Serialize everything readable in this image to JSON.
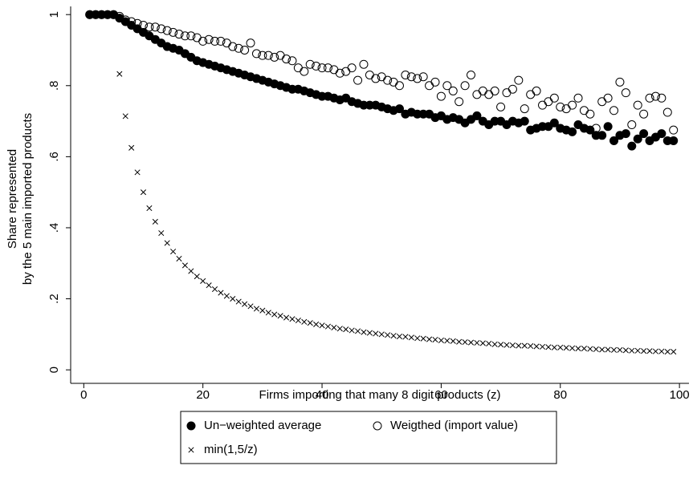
{
  "chart_data": {
    "type": "scatter",
    "y_label": [
      "Share represented",
      "by the 5 main imported products"
    ],
    "x_label": "Firms importing that many 8 digit products (z)",
    "xlim": [
      -2.2,
      101.6
    ],
    "xticks": [
      0,
      20,
      40,
      60,
      80,
      100
    ],
    "ylim": [
      -0.038,
      1.023
    ],
    "yticks": [
      0,
      {
        "value": 0.2,
        "label": ".2"
      },
      {
        "value": 0.4,
        "label": ".4"
      },
      {
        "value": 0.6,
        "label": ".6"
      },
      {
        "value": 0.8,
        "label": ".8"
      },
      1
    ],
    "legend": "bottom",
    "x": [
      1,
      2,
      3,
      4,
      5,
      6,
      7,
      8,
      9,
      10,
      11,
      12,
      13,
      14,
      15,
      16,
      17,
      18,
      19,
      20,
      21,
      22,
      23,
      24,
      25,
      26,
      27,
      28,
      29,
      30,
      31,
      32,
      33,
      34,
      35,
      36,
      37,
      38,
      39,
      40,
      41,
      42,
      43,
      44,
      45,
      46,
      47,
      48,
      49,
      50,
      51,
      52,
      53,
      54,
      55,
      56,
      57,
      58,
      59,
      60,
      61,
      62,
      63,
      64,
      65,
      66,
      67,
      68,
      69,
      70,
      71,
      72,
      73,
      74,
      75,
      76,
      77,
      78,
      79,
      80,
      81,
      82,
      83,
      84,
      85,
      86,
      87,
      88,
      89,
      90,
      91,
      92,
      93,
      94,
      95,
      96,
      97,
      98,
      99
    ],
    "series": [
      {
        "name": "Un−weighted average",
        "color": "#000000",
        "marker": "filled-circle",
        "values": [
          1,
          1,
          1,
          1,
          1,
          0.99,
          0.98,
          0.97,
          0.96,
          0.95,
          0.94,
          0.93,
          0.92,
          0.91,
          0.905,
          0.9,
          0.89,
          0.88,
          0.87,
          0.865,
          0.86,
          0.855,
          0.85,
          0.845,
          0.84,
          0.835,
          0.83,
          0.825,
          0.82,
          0.815,
          0.81,
          0.805,
          0.8,
          0.795,
          0.79,
          0.79,
          0.785,
          0.78,
          0.775,
          0.77,
          0.77,
          0.765,
          0.76,
          0.765,
          0.755,
          0.75,
          0.745,
          0.745,
          0.745,
          0.74,
          0.735,
          0.73,
          0.735,
          0.72,
          0.725,
          0.72,
          0.72,
          0.72,
          0.71,
          0.715,
          0.705,
          0.71,
          0.705,
          0.695,
          0.705,
          0.715,
          0.7,
          0.69,
          0.7,
          0.7,
          0.69,
          0.7,
          0.695,
          0.7,
          0.675,
          0.68,
          0.685,
          0.685,
          0.695,
          0.68,
          0.675,
          0.67,
          0.69,
          0.68,
          0.675,
          0.66,
          0.66,
          0.685,
          0.645,
          0.66,
          0.665,
          0.63,
          0.65,
          0.665,
          0.645,
          0.655,
          0.665,
          0.645,
          0.645
        ]
      },
      {
        "name": "Weigthed (import value)",
        "color": "#000000",
        "marker": "hollow-circle",
        "values": [
          1,
          1,
          1,
          1,
          1,
          0.995,
          0.985,
          0.98,
          0.975,
          0.97,
          0.965,
          0.965,
          0.96,
          0.955,
          0.95,
          0.945,
          0.94,
          0.94,
          0.935,
          0.925,
          0.93,
          0.925,
          0.925,
          0.92,
          0.91,
          0.905,
          0.9,
          0.92,
          0.89,
          0.885,
          0.885,
          0.88,
          0.885,
          0.875,
          0.87,
          0.85,
          0.84,
          0.86,
          0.855,
          0.85,
          0.85,
          0.845,
          0.835,
          0.84,
          0.85,
          0.815,
          0.86,
          0.83,
          0.82,
          0.825,
          0.815,
          0.81,
          0.8,
          0.83,
          0.825,
          0.82,
          0.825,
          0.8,
          0.81,
          0.77,
          0.8,
          0.785,
          0.755,
          0.8,
          0.83,
          0.775,
          0.785,
          0.775,
          0.785,
          0.74,
          0.78,
          0.79,
          0.815,
          0.735,
          0.775,
          0.785,
          0.745,
          0.755,
          0.765,
          0.74,
          0.735,
          0.745,
          0.765,
          0.73,
          0.72,
          0.68,
          0.755,
          0.765,
          0.73,
          0.81,
          0.78,
          0.69,
          0.745,
          0.72,
          0.765,
          0.77,
          0.765,
          0.725,
          0.675
        ]
      },
      {
        "name": "min(1,5/z)",
        "color": "#000000",
        "marker": "cross",
        "values": [
          1,
          1,
          1,
          1,
          1,
          0.833,
          0.714,
          0.625,
          0.556,
          0.5,
          0.455,
          0.417,
          0.385,
          0.357,
          0.333,
          0.313,
          0.294,
          0.278,
          0.263,
          0.25,
          0.238,
          0.227,
          0.217,
          0.208,
          0.2,
          0.192,
          0.185,
          0.179,
          0.172,
          0.167,
          0.161,
          0.156,
          0.152,
          0.147,
          0.143,
          0.139,
          0.135,
          0.132,
          0.128,
          0.125,
          0.122,
          0.119,
          0.116,
          0.114,
          0.111,
          0.109,
          0.106,
          0.104,
          0.102,
          0.1,
          0.098,
          0.096,
          0.094,
          0.093,
          0.091,
          0.089,
          0.088,
          0.086,
          0.085,
          0.083,
          0.082,
          0.081,
          0.079,
          0.078,
          0.077,
          0.076,
          0.075,
          0.074,
          0.072,
          0.071,
          0.07,
          0.069,
          0.068,
          0.068,
          0.067,
          0.066,
          0.065,
          0.064,
          0.063,
          0.063,
          0.062,
          0.061,
          0.06,
          0.06,
          0.059,
          0.058,
          0.057,
          0.057,
          0.056,
          0.056,
          0.055,
          0.054,
          0.054,
          0.053,
          0.053,
          0.052,
          0.052,
          0.051,
          0.051
        ]
      }
    ]
  }
}
